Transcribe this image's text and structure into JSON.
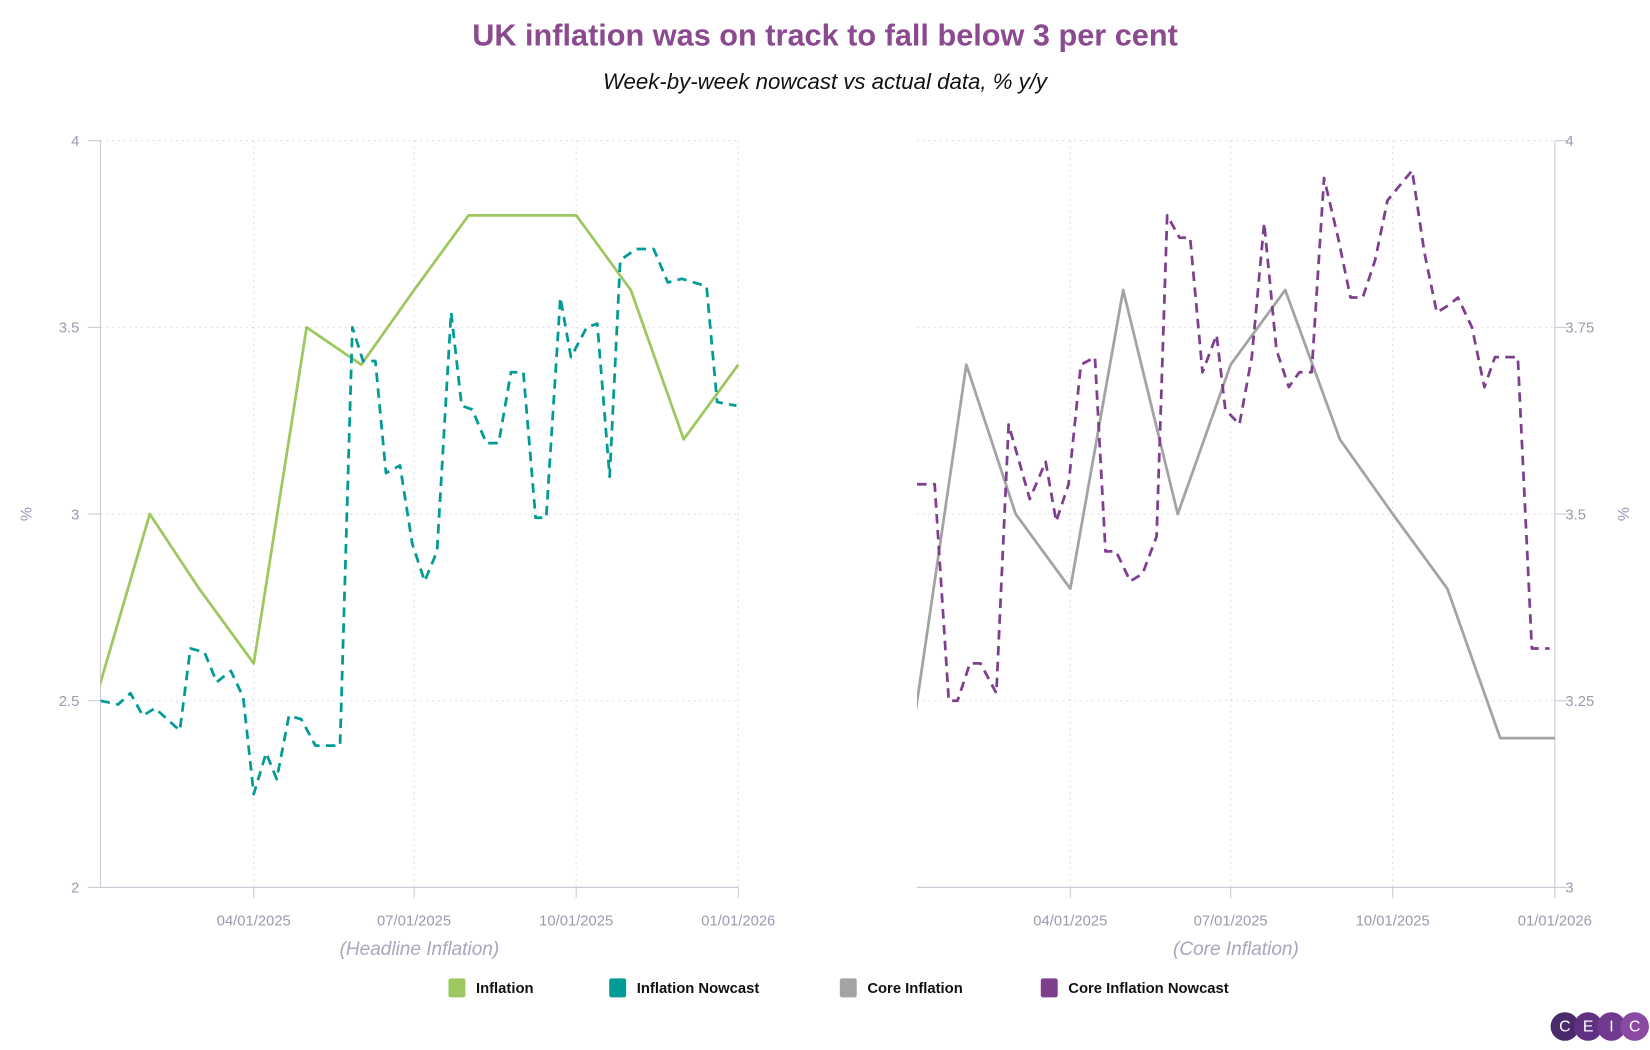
{
  "title": "UK inflation was on track to fall below 3 per cent",
  "subtitle": "Week-by-week nowcast vs actual data, % y/y",
  "colors": {
    "inflation": "#9DC75F",
    "inflation_nowcast": "#009B96",
    "core_inflation": "#A3A3A3",
    "core_inflation_nowcast": "#7E3F8F",
    "title": "#8B4A8F",
    "axis": "#9A9AB0"
  },
  "legend": [
    {
      "label": "Inflation",
      "color": "#9DC75F"
    },
    {
      "label": "Inflation Nowcast",
      "color": "#009B96"
    },
    {
      "label": "Core Inflation",
      "color": "#A3A3A3"
    },
    {
      "label": "Core Inflation Nowcast",
      "color": "#7E3F8F"
    }
  ],
  "logo": {
    "letters": [
      "C",
      "E",
      "I",
      "C"
    ],
    "colors": [
      "#4B2A6B",
      "#5F3180",
      "#71398F",
      "#8A4AA3"
    ]
  },
  "chart_data": [
    {
      "type": "line",
      "xlabel": "(Headline Inflation)",
      "ylabel": "%",
      "y_axis_side": "left",
      "ylim": [
        2,
        4
      ],
      "yticks": [
        "2",
        "2.5",
        "3",
        "3.5",
        "4"
      ],
      "xlim": [
        "2025-01-04",
        "2026-01-01"
      ],
      "xticks": [
        {
          "date": "2025-04-01",
          "label": "04/01/2025"
        },
        {
          "date": "2025-07-01",
          "label": "07/01/2025"
        },
        {
          "date": "2025-10-01",
          "label": "10/01/2025"
        },
        {
          "date": "2026-01-01",
          "label": "01/01/2026"
        }
      ],
      "grid": true,
      "series": [
        {
          "name": "Inflation",
          "style": "solid",
          "color": "#9DC75F",
          "points": [
            [
              "2025-01-01",
              2.5
            ],
            [
              "2025-02-01",
              3.0
            ],
            [
              "2025-03-01",
              2.8
            ],
            [
              "2025-04-01",
              2.6
            ],
            [
              "2025-05-01",
              3.5
            ],
            [
              "2025-06-01",
              3.4
            ],
            [
              "2025-07-01",
              3.6
            ],
            [
              "2025-08-01",
              3.8
            ],
            [
              "2025-09-01",
              3.8
            ],
            [
              "2025-10-01",
              3.8
            ],
            [
              "2025-11-01",
              3.6
            ],
            [
              "2025-12-01",
              3.2
            ],
            [
              "2026-01-01",
              3.4
            ]
          ]
        },
        {
          "name": "Inflation Nowcast",
          "style": "dashed",
          "color": "#009B96",
          "points": [
            [
              "2025-01-04",
              2.5
            ],
            [
              "2025-01-14",
              2.49
            ],
            [
              "2025-01-21",
              2.52
            ],
            [
              "2025-01-28",
              2.46
            ],
            [
              "2025-02-04",
              2.48
            ],
            [
              "2025-02-18",
              2.42
            ],
            [
              "2025-02-24",
              2.64
            ],
            [
              "2025-03-04",
              2.63
            ],
            [
              "2025-03-11",
              2.55
            ],
            [
              "2025-03-19",
              2.58
            ],
            [
              "2025-03-26",
              2.51
            ],
            [
              "2025-04-01",
              2.25
            ],
            [
              "2025-04-08",
              2.36
            ],
            [
              "2025-04-14",
              2.29
            ],
            [
              "2025-04-21",
              2.46
            ],
            [
              "2025-04-28",
              2.45
            ],
            [
              "2025-05-06",
              2.38
            ],
            [
              "2025-05-20",
              2.38
            ],
            [
              "2025-05-27",
              3.5
            ],
            [
              "2025-06-02",
              3.41
            ],
            [
              "2025-06-09",
              3.41
            ],
            [
              "2025-06-15",
              3.11
            ],
            [
              "2025-06-23",
              3.13
            ],
            [
              "2025-06-30",
              2.92
            ],
            [
              "2025-07-07",
              2.82
            ],
            [
              "2025-07-14",
              2.9
            ],
            [
              "2025-07-22",
              3.54
            ],
            [
              "2025-07-28",
              3.29
            ],
            [
              "2025-08-03",
              3.28
            ],
            [
              "2025-08-11",
              3.19
            ],
            [
              "2025-08-18",
              3.19
            ],
            [
              "2025-08-25",
              3.38
            ],
            [
              "2025-09-01",
              3.38
            ],
            [
              "2025-09-08",
              2.99
            ],
            [
              "2025-09-14",
              2.99
            ],
            [
              "2025-09-22",
              3.58
            ],
            [
              "2025-09-28",
              3.42
            ],
            [
              "2025-10-07",
              3.5
            ],
            [
              "2025-10-13",
              3.51
            ],
            [
              "2025-10-20",
              3.1
            ],
            [
              "2025-10-26",
              3.68
            ],
            [
              "2025-11-04",
              3.71
            ],
            [
              "2025-11-14",
              3.71
            ],
            [
              "2025-11-22",
              3.62
            ],
            [
              "2025-11-30",
              3.63
            ],
            [
              "2025-12-14",
              3.61
            ],
            [
              "2025-12-20",
              3.3
            ],
            [
              "2025-12-31",
              3.29
            ]
          ]
        }
      ]
    },
    {
      "type": "line",
      "xlabel": "(Core Inflation)",
      "ylabel": "%",
      "y_axis_side": "right",
      "ylim": [
        3,
        4
      ],
      "yticks": [
        "3",
        "3.25",
        "3.5",
        "3.75",
        "4"
      ],
      "xlim": [
        "2025-01-04",
        "2026-01-01"
      ],
      "xticks": [
        {
          "date": "2025-04-01",
          "label": "04/01/2025"
        },
        {
          "date": "2025-07-01",
          "label": "07/01/2025"
        },
        {
          "date": "2025-10-01",
          "label": "10/01/2025"
        },
        {
          "date": "2026-01-01",
          "label": "01/01/2026"
        }
      ],
      "grid": true,
      "series": [
        {
          "name": "Core Inflation",
          "style": "solid",
          "color": "#A3A3A3",
          "points": [
            [
              "2025-01-01",
              3.2
            ],
            [
              "2025-02-01",
              3.7
            ],
            [
              "2025-03-01",
              3.5
            ],
            [
              "2025-04-01",
              3.4
            ],
            [
              "2025-05-01",
              3.8
            ],
            [
              "2025-06-01",
              3.5
            ],
            [
              "2025-07-01",
              3.7
            ],
            [
              "2025-08-01",
              3.8
            ],
            [
              "2025-09-01",
              3.6
            ],
            [
              "2025-10-01",
              3.5
            ],
            [
              "2025-11-01",
              3.4
            ],
            [
              "2025-12-01",
              3.2
            ],
            [
              "2026-01-01",
              3.2
            ]
          ]
        },
        {
          "name": "Core Inflation Nowcast",
          "style": "dashed",
          "color": "#7E3F8F",
          "points": [
            [
              "2025-01-04",
              3.54
            ],
            [
              "2025-01-14",
              3.54
            ],
            [
              "2025-01-22",
              3.25
            ],
            [
              "2025-01-27",
              3.25
            ],
            [
              "2025-02-03",
              3.3
            ],
            [
              "2025-02-09",
              3.3
            ],
            [
              "2025-02-18",
              3.26
            ],
            [
              "2025-02-25",
              3.62
            ],
            [
              "2025-03-03",
              3.57
            ],
            [
              "2025-03-09",
              3.52
            ],
            [
              "2025-03-18",
              3.57
            ],
            [
              "2025-03-24",
              3.49
            ],
            [
              "2025-03-31",
              3.54
            ],
            [
              "2025-04-07",
              3.7
            ],
            [
              "2025-04-15",
              3.71
            ],
            [
              "2025-04-21",
              3.45
            ],
            [
              "2025-04-27",
              3.45
            ],
            [
              "2025-05-05",
              3.41
            ],
            [
              "2025-05-12",
              3.42
            ],
            [
              "2025-05-20",
              3.47
            ],
            [
              "2025-05-26",
              3.9
            ],
            [
              "2025-06-02",
              3.87
            ],
            [
              "2025-06-08",
              3.87
            ],
            [
              "2025-06-15",
              3.69
            ],
            [
              "2025-06-23",
              3.74
            ],
            [
              "2025-06-28",
              3.64
            ],
            [
              "2025-07-06",
              3.62
            ],
            [
              "2025-07-13",
              3.71
            ],
            [
              "2025-07-20",
              3.89
            ],
            [
              "2025-07-27",
              3.72
            ],
            [
              "2025-08-03",
              3.67
            ],
            [
              "2025-08-09",
              3.69
            ],
            [
              "2025-08-16",
              3.69
            ],
            [
              "2025-08-23",
              3.95
            ],
            [
              "2025-08-31",
              3.87
            ],
            [
              "2025-09-07",
              3.79
            ],
            [
              "2025-09-14",
              3.79
            ],
            [
              "2025-09-21",
              3.84
            ],
            [
              "2025-09-28",
              3.92
            ],
            [
              "2025-10-05",
              3.94
            ],
            [
              "2025-10-12",
              3.96
            ],
            [
              "2025-10-19",
              3.85
            ],
            [
              "2025-10-26",
              3.77
            ],
            [
              "2025-11-02",
              3.78
            ],
            [
              "2025-11-07",
              3.79
            ],
            [
              "2025-11-15",
              3.75
            ],
            [
              "2025-11-22",
              3.67
            ],
            [
              "2025-11-28",
              3.71
            ],
            [
              "2025-12-11",
              3.71
            ],
            [
              "2025-12-19",
              3.32
            ],
            [
              "2025-12-29",
              3.32
            ]
          ]
        }
      ]
    }
  ]
}
